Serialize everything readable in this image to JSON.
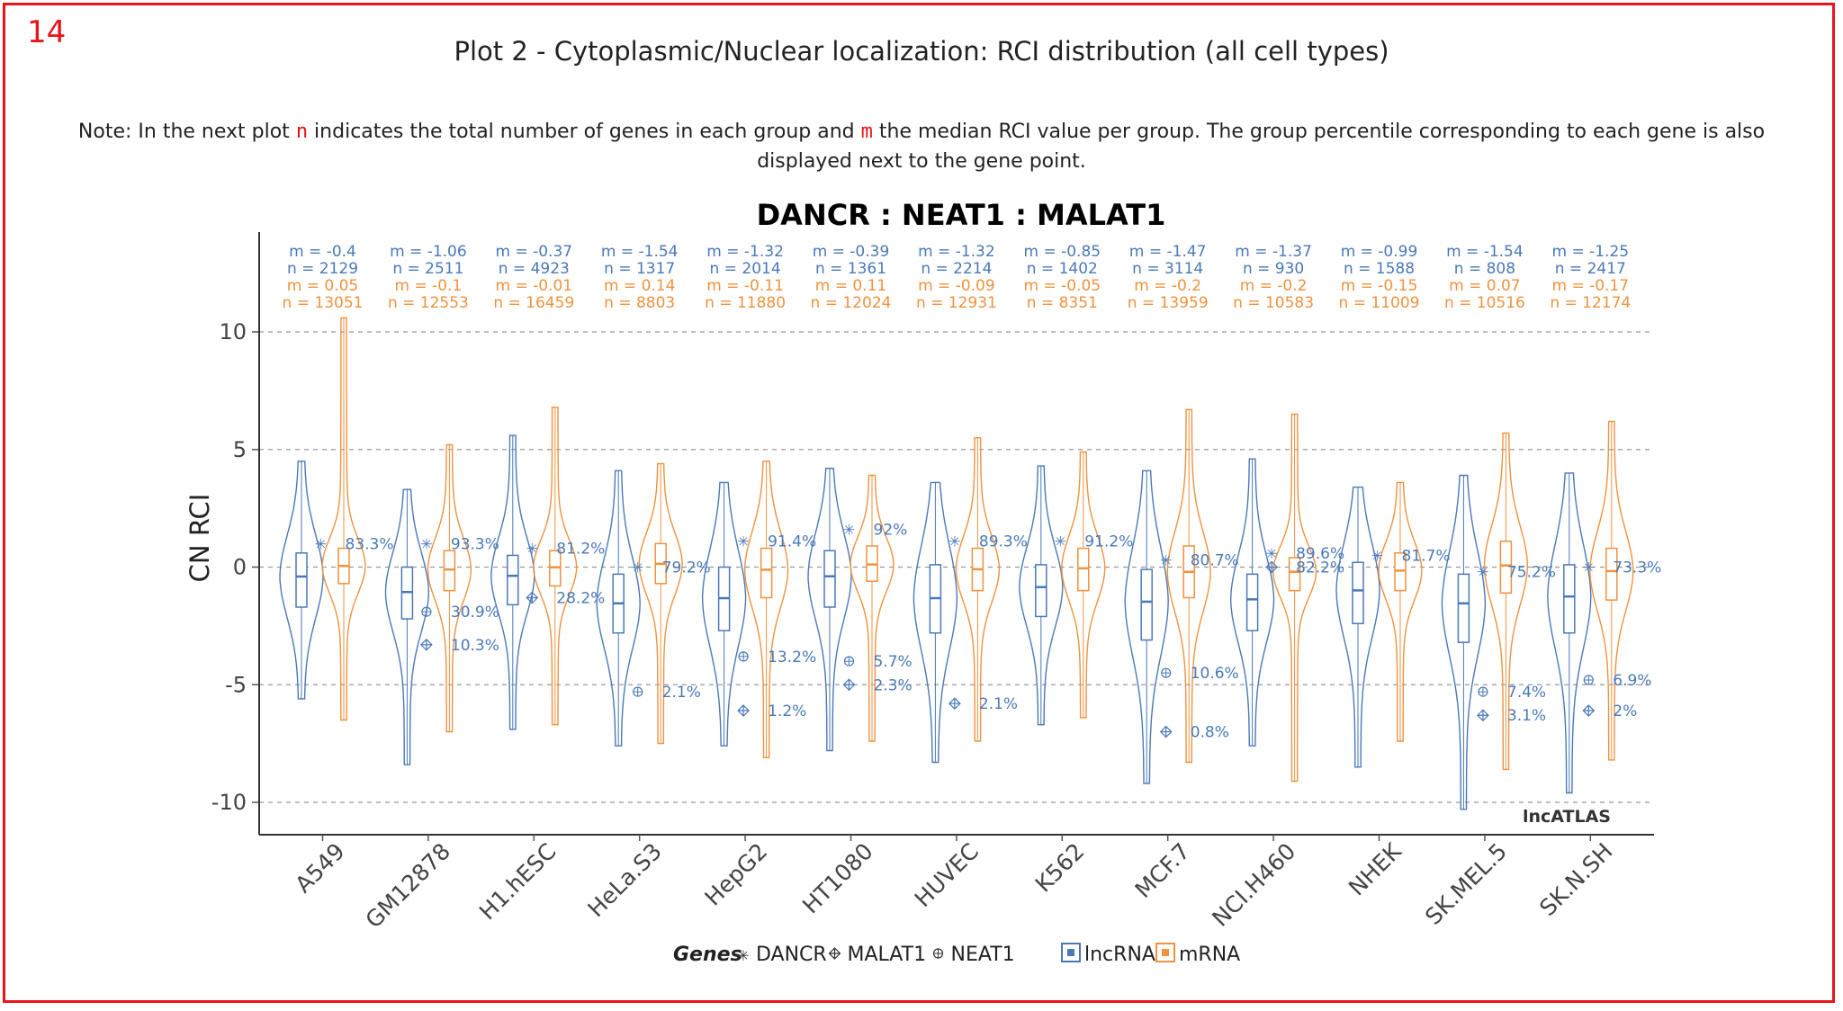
{
  "page_number": "14",
  "heading": "Plot 2 - Cytoplasmic/Nuclear localization: RCI distribution (all cell types)",
  "note": {
    "before_n": "Note: In the next plot ",
    "n_symbol": "n",
    "middle": " indicates the total number of genes in each group and ",
    "m_symbol": "m",
    "after_m": " the median RCI value per group. The group percentile corresponding to each gene is also displayed next to the gene point."
  },
  "colors": {
    "lncRNA": "#4a79b8",
    "mRNA": "#f0923e",
    "frame": "#e8141a"
  },
  "chart_data": {
    "type": "violin",
    "title": "DANCR : NEAT1 : MALAT1",
    "ylabel": "CN RCI",
    "xlabel": "",
    "ylim": [
      -11.3,
      14.3
    ],
    "yticks": [
      "10",
      "5",
      "0",
      "-5",
      "-10"
    ],
    "ytick_values": [
      10,
      5,
      0,
      -5,
      -10
    ],
    "grid": "horizontal dashed",
    "watermark": "lncATLAS",
    "categories": [
      "A549",
      "GM12878",
      "H1.hESC",
      "HeLa.S3",
      "HepG2",
      "HT1080",
      "HUVEC",
      "K562",
      "MCF.7",
      "NCI.H460",
      "NHEK",
      "SK.MEL.5",
      "SK.N.SH"
    ],
    "series": [
      {
        "name": "lncRNA",
        "m_labels": [
          "m = -0.4",
          "m = -1.06",
          "m = -0.37",
          "m = -1.54",
          "m = -1.32",
          "m = -0.39",
          "m = -1.32",
          "m = -0.85",
          "m = -1.47",
          "m = -1.37",
          "m = -0.99",
          "m = -1.54",
          "m = -1.25"
        ],
        "n_labels": [
          "n = 2129",
          "n = 2511",
          "n = 4923",
          "n = 1317",
          "n = 2014",
          "n = 1361",
          "n = 2214",
          "n = 1402",
          "n = 3114",
          "n = 930",
          "n = 1588",
          "n = 808",
          "n = 2417"
        ],
        "median": [
          -0.4,
          -1.06,
          -0.37,
          -1.54,
          -1.32,
          -0.39,
          -1.32,
          -0.85,
          -1.47,
          -1.37,
          -0.99,
          -1.54,
          -1.25
        ],
        "q1": [
          -1.7,
          -2.2,
          -1.6,
          -2.8,
          -2.7,
          -1.7,
          -2.8,
          -2.1,
          -3.1,
          -2.7,
          -2.4,
          -3.2,
          -2.8
        ],
        "q3": [
          0.6,
          0.0,
          0.5,
          -0.3,
          0.0,
          0.7,
          0.1,
          0.1,
          -0.1,
          -0.3,
          0.2,
          -0.3,
          0.1
        ],
        "min": [
          -5.6,
          -8.4,
          -6.9,
          -7.6,
          -7.6,
          -7.8,
          -8.3,
          -6.7,
          -9.2,
          -7.6,
          -8.5,
          -10.3,
          -9.6
        ],
        "max": [
          4.5,
          3.3,
          5.6,
          4.1,
          3.6,
          4.2,
          3.6,
          4.3,
          4.1,
          4.6,
          3.4,
          3.9,
          4.0
        ]
      },
      {
        "name": "mRNA",
        "m_labels": [
          "m = 0.05",
          "m = -0.1",
          "m = -0.01",
          "m = 0.14",
          "m = -0.11",
          "m = 0.11",
          "m = -0.09",
          "m = -0.05",
          "m = -0.2",
          "m = -0.2",
          "m = -0.15",
          "m = 0.07",
          "m = -0.17"
        ],
        "n_labels": [
          "n = 13051",
          "n = 12553",
          "n = 16459",
          "n = 8803",
          "n = 11880",
          "n = 12024",
          "n = 12931",
          "n = 8351",
          "n = 13959",
          "n = 10583",
          "n = 11009",
          "n = 10516",
          "n = 12174"
        ],
        "median": [
          0.05,
          -0.1,
          -0.01,
          0.14,
          -0.11,
          0.11,
          -0.09,
          -0.05,
          -0.2,
          -0.2,
          -0.15,
          0.07,
          -0.17
        ],
        "q1": [
          -0.7,
          -1.0,
          -0.8,
          -0.7,
          -1.3,
          -0.6,
          -1.0,
          -1.0,
          -1.3,
          -1.0,
          -1.0,
          -1.1,
          -1.4
        ],
        "q3": [
          0.8,
          0.7,
          0.7,
          1.0,
          0.8,
          0.9,
          0.8,
          0.8,
          0.9,
          0.4,
          0.6,
          1.1,
          0.8
        ],
        "min": [
          -6.5,
          -7.0,
          -6.7,
          -7.5,
          -8.1,
          -7.4,
          -7.4,
          -6.4,
          -8.3,
          -9.1,
          -7.4,
          -8.6,
          -8.2
        ],
        "max": [
          10.6,
          5.2,
          6.8,
          4.4,
          4.5,
          3.9,
          5.5,
          4.9,
          6.7,
          6.5,
          3.6,
          5.7,
          6.2
        ]
      }
    ],
    "genes_legend_title": "Genes",
    "genes": [
      {
        "name": "DANCR",
        "symbol": "✳",
        "rci": [
          1.0,
          1.0,
          0.8,
          0.0,
          1.1,
          1.6,
          1.1,
          1.1,
          0.3,
          0.6,
          0.5,
          -0.2,
          0.0
        ],
        "percentile": [
          "83.3%",
          "93.3%",
          "81.2%",
          "79.2%",
          "91.4%",
          "92%",
          "89.3%",
          "91.2%",
          "80.7%",
          "89.6%",
          "81.7%",
          "75.2%",
          "73.3%"
        ]
      },
      {
        "name": "MALAT1",
        "symbol": "⯐",
        "rci": [
          null,
          -3.3,
          -1.3,
          null,
          -6.1,
          -5.0,
          -5.8,
          null,
          -7.0,
          0.0,
          null,
          -6.3,
          -6.1
        ],
        "percentile": [
          "",
          "10.3%",
          "28.2%",
          "",
          "1.2%",
          "2.3%",
          "2.1%",
          "",
          "0.8%",
          "82.2%",
          "",
          "3.1%",
          "2%"
        ]
      },
      {
        "name": "NEAT1",
        "symbol": "⊕",
        "rci": [
          null,
          -1.9,
          null,
          -5.3,
          -3.8,
          -4.0,
          null,
          null,
          -4.5,
          null,
          null,
          -5.3,
          -4.8
        ],
        "percentile": [
          "",
          "30.9%",
          "",
          "2.1%",
          "13.2%",
          "5.7%",
          "",
          "",
          "10.6%",
          "",
          "",
          "7.4%",
          "6.9%"
        ]
      }
    ],
    "legend": [
      "lncRNA",
      "mRNA"
    ]
  }
}
